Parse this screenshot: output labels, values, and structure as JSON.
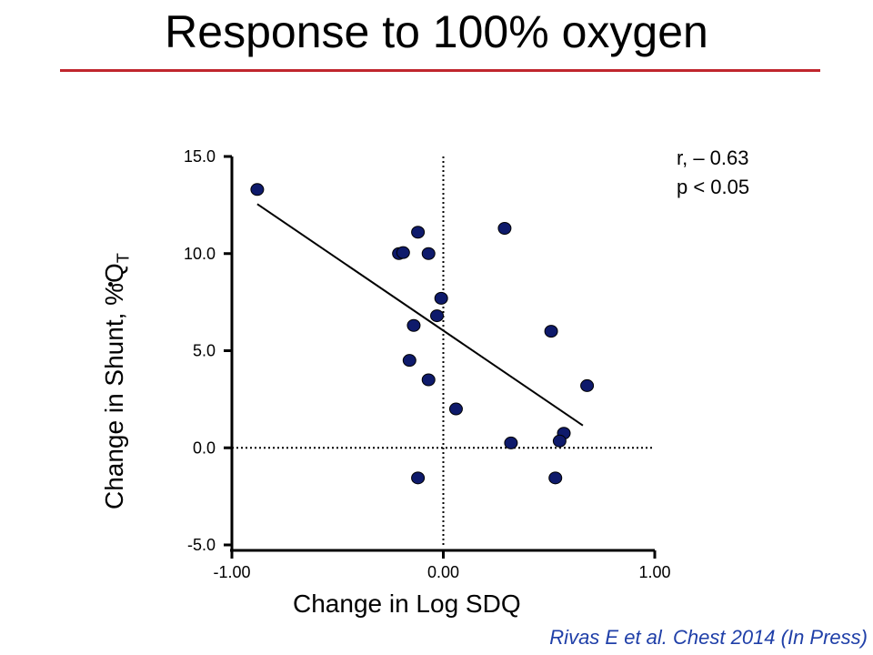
{
  "title": "Response to 100% oxygen",
  "stats": {
    "r": "r, – 0.63",
    "p": "p < 0.05"
  },
  "citation": "Rivas E et al. Chest 2014 (In Press)",
  "colors": {
    "rule": "#c0262d",
    "point": "#0e1a6b",
    "citation": "#1f3fa8"
  },
  "chart_data": {
    "type": "scatter",
    "title": "Response to 100% oxygen",
    "xlabel": "Change in Log SDQ",
    "ylabel_main": "Change in Shunt, %Q",
    "ylabel_sub": "T",
    "xlim": [
      -1.0,
      1.0
    ],
    "ylim": [
      -5.0,
      15.0
    ],
    "x_ticks": [
      -1.0,
      0.0,
      1.0
    ],
    "x_tick_labels": [
      "-1.00",
      "0.00",
      "1.00"
    ],
    "y_ticks": [
      -5.0,
      0.0,
      5.0,
      10.0,
      15.0
    ],
    "y_tick_labels": [
      "-5.0",
      "0.0",
      "5.0",
      "10.0",
      "15.0"
    ],
    "reference_lines": {
      "x": 0.0,
      "y": 0.0,
      "style": "dotted"
    },
    "points": [
      {
        "x": -0.88,
        "y": 13.3
      },
      {
        "x": -0.21,
        "y": 10.0
      },
      {
        "x": -0.19,
        "y": 10.05
      },
      {
        "x": -0.12,
        "y": 11.1
      },
      {
        "x": -0.07,
        "y": 10.0
      },
      {
        "x": -0.01,
        "y": 7.7
      },
      {
        "x": -0.03,
        "y": 6.8
      },
      {
        "x": -0.14,
        "y": 6.3
      },
      {
        "x": -0.16,
        "y": 4.5
      },
      {
        "x": -0.07,
        "y": 3.5
      },
      {
        "x": 0.06,
        "y": 2.0
      },
      {
        "x": -0.12,
        "y": -1.55
      },
      {
        "x": 0.29,
        "y": 11.3
      },
      {
        "x": 0.51,
        "y": 6.0
      },
      {
        "x": 0.68,
        "y": 3.2
      },
      {
        "x": 0.57,
        "y": 0.75
      },
      {
        "x": 0.55,
        "y": 0.35
      },
      {
        "x": 0.32,
        "y": 0.25
      },
      {
        "x": 0.53,
        "y": -1.55
      }
    ],
    "trendline": {
      "x": [
        -0.88,
        0.66
      ],
      "y": [
        12.55,
        1.15
      ]
    },
    "grid": false,
    "r": -0.63,
    "p": "< 0.05"
  }
}
